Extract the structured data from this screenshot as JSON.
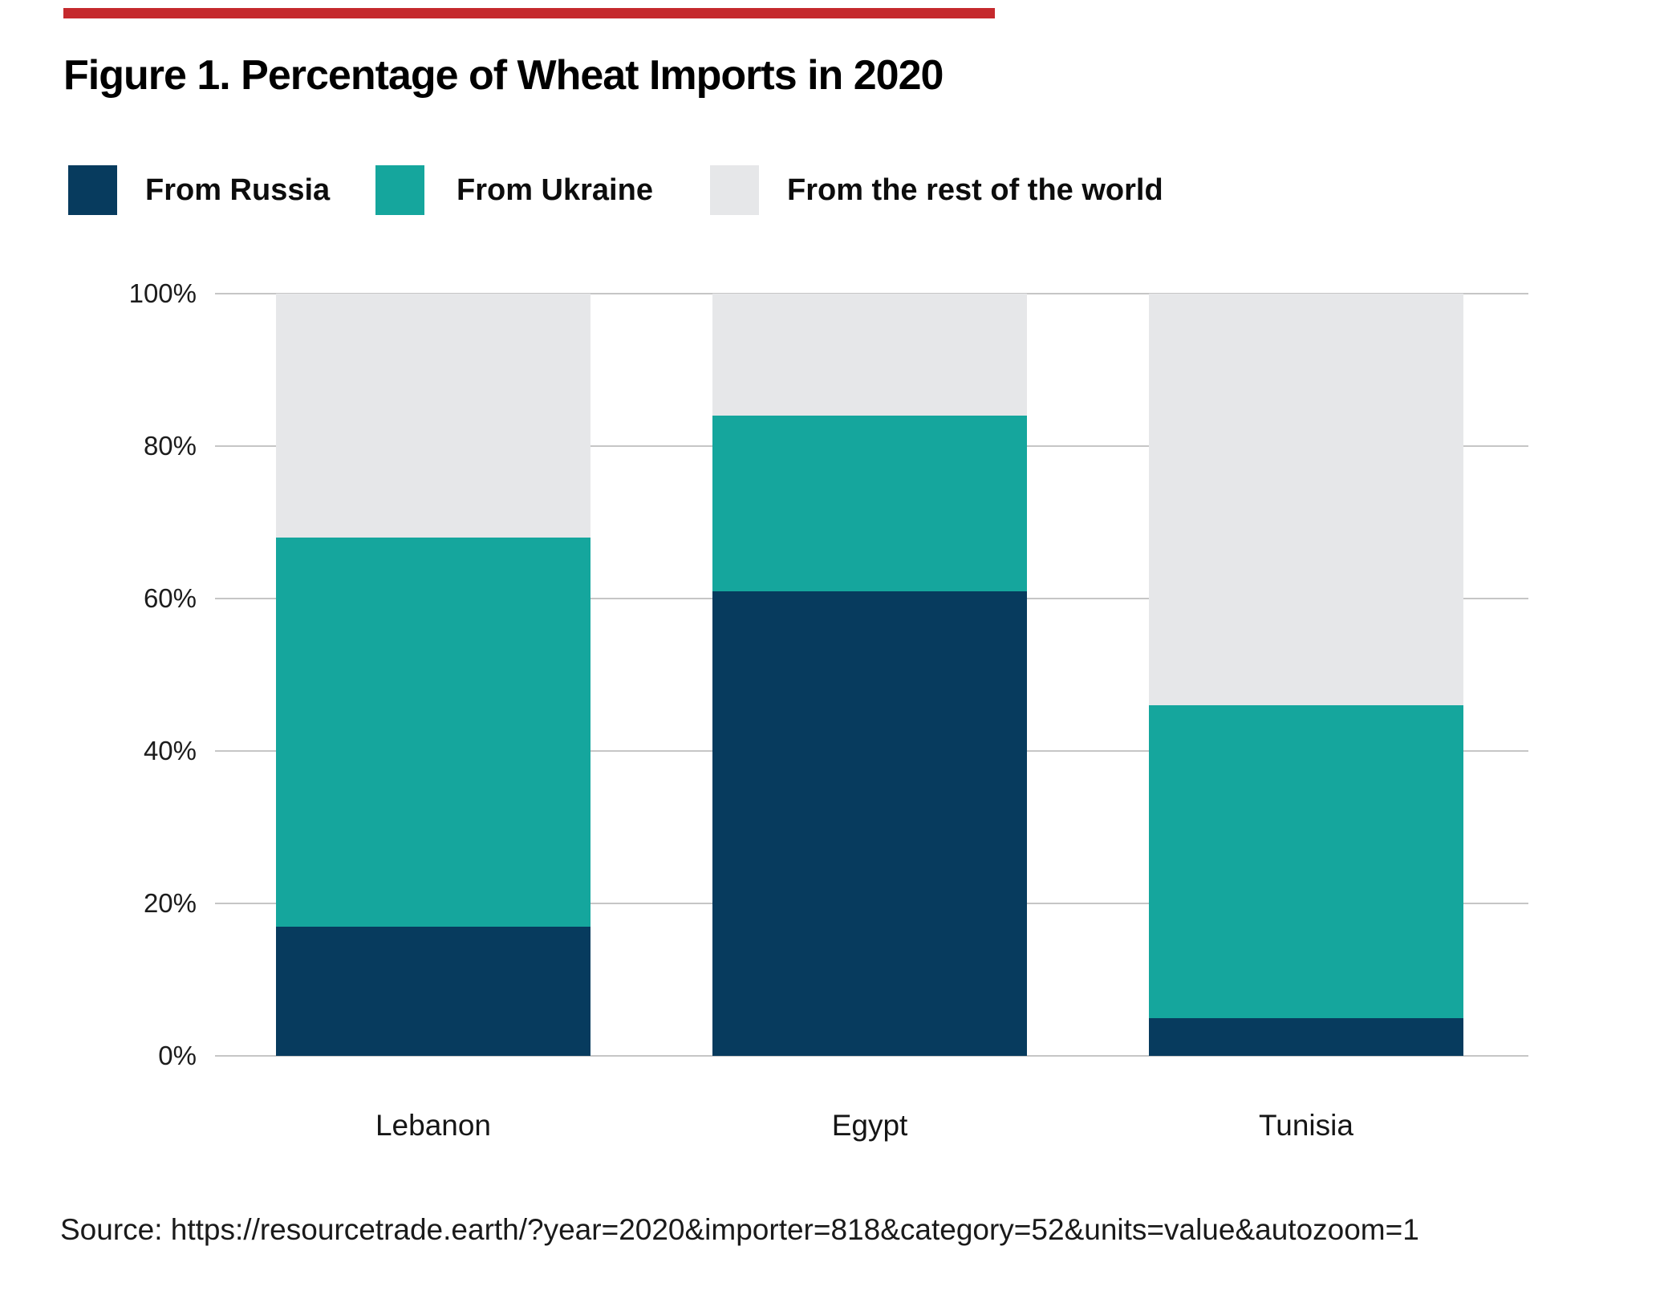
{
  "accent_bar": {
    "color": "#c5292d"
  },
  "figure": {
    "title": "Figure 1. Percentage of Wheat Imports in 2020"
  },
  "legend": [
    {
      "label": "From Russia",
      "color": "#073b5e"
    },
    {
      "label": "From Ukraine",
      "color": "#15a69d"
    },
    {
      "label": "From the rest of the world",
      "color": "#e6e7e9"
    }
  ],
  "chart_data": {
    "type": "bar",
    "stacked": true,
    "title": "Figure 1. Percentage of Wheat Imports in 2020",
    "categories": [
      "Lebanon",
      "Egypt",
      "Tunisia"
    ],
    "series": [
      {
        "name": "From Russia",
        "color": "#073b5e",
        "values": [
          17,
          61,
          5
        ]
      },
      {
        "name": "From Ukraine",
        "color": "#15a69d",
        "values": [
          51,
          23,
          41
        ]
      },
      {
        "name": "From the rest of the world",
        "color": "#e6e7e9",
        "values": [
          32,
          16,
          54
        ]
      }
    ],
    "y_ticks": [
      "0%",
      "20%",
      "40%",
      "60%",
      "80%",
      "100%"
    ],
    "ylim": [
      0,
      100
    ],
    "grid": true,
    "gridline_color": "#c6c6c6",
    "legend_position": "top",
    "xlabel": "",
    "ylabel": ""
  },
  "source": {
    "text": "Source: https://resourcetrade.earth/?year=2020&importer=818&category=52&units=value&autozoom=1"
  }
}
